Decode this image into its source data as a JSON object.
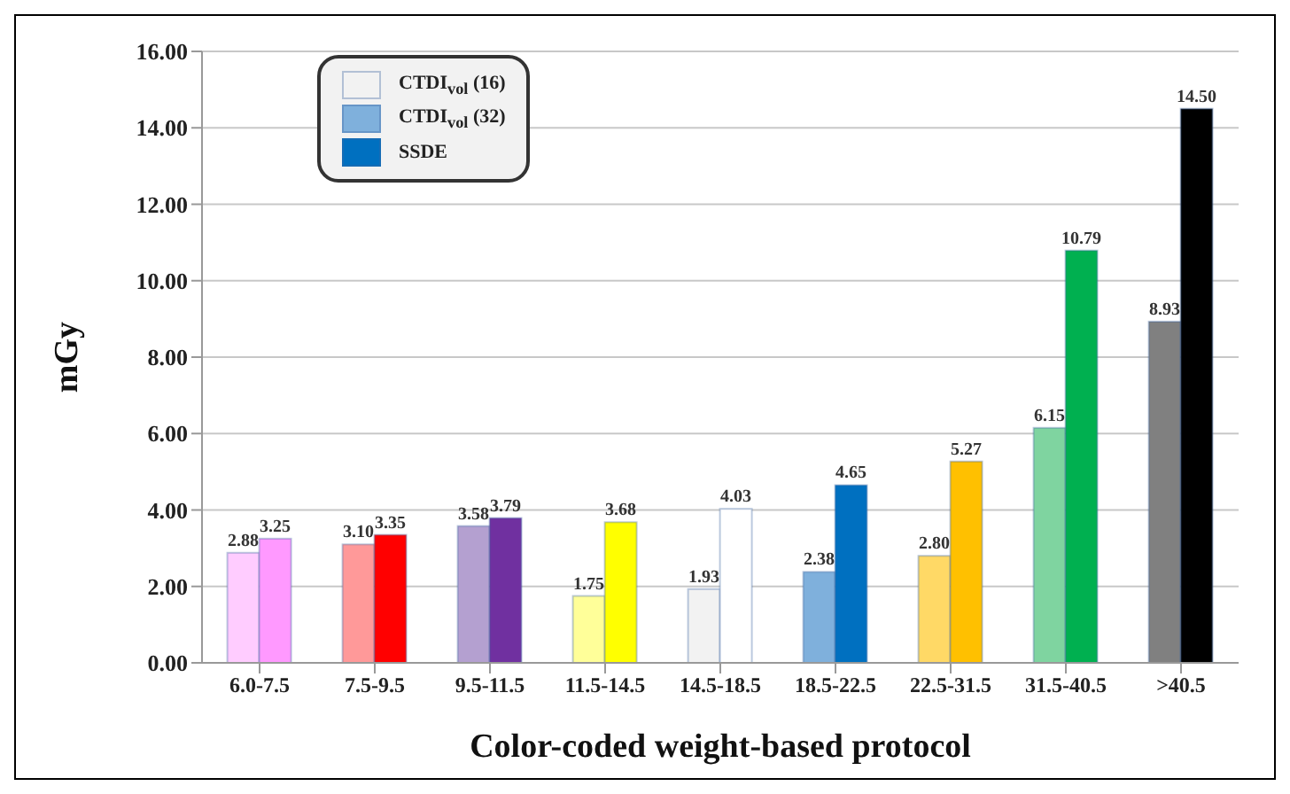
{
  "chart_data": {
    "type": "bar",
    "xlabel": "Color-coded weight-based protocol",
    "ylabel": "mGy",
    "categories": [
      "6.0-7.5",
      "7.5-9.5",
      "9.5-11.5",
      "11.5-14.5",
      "14.5-18.5",
      "18.5-22.5",
      "22.5-31.5",
      "31.5-40.5",
      ">40.5"
    ],
    "series": [
      {
        "name": "CTDI$_{vol}$ (16)",
        "color": "#f2f2f2",
        "colors": [
          "#ffccff",
          "#ff9999",
          "#b4a0d0",
          "#ffff99",
          "#f2f2f2",
          null,
          null,
          null,
          null
        ],
        "values": [
          2.88,
          3.1,
          3.58,
          1.75,
          1.93,
          null,
          null,
          null,
          null
        ],
        "value_labels": [
          "2.88",
          "3.10",
          "3.58",
          "1.75",
          "1.93",
          null,
          null,
          null,
          null
        ]
      },
      {
        "name": "CTDI$_{vol}$ (32)",
        "color": "#7fb0dc",
        "colors": [
          null,
          null,
          null,
          null,
          null,
          "#7fb0dc",
          "#ffd966",
          "#7fd4a0",
          "#808080"
        ],
        "values": [
          null,
          null,
          null,
          null,
          null,
          2.38,
          2.8,
          6.15,
          8.93
        ],
        "value_labels": [
          null,
          null,
          null,
          null,
          null,
          "2.38",
          "2.80",
          "6.15",
          "8.93"
        ]
      },
      {
        "name": "SSDE",
        "color": "#0070c0",
        "colors": [
          "#ff99ff",
          "#ff0000",
          "#7030a0",
          "#ffff00",
          "#ffffff",
          "#0070c0",
          "#ffc000",
          "#00b050",
          "#000000"
        ],
        "values": [
          3.25,
          3.35,
          3.79,
          3.68,
          4.03,
          4.65,
          5.27,
          10.79,
          14.5
        ],
        "value_labels": [
          "3.25",
          "3.35",
          "3.79",
          "3.68",
          "4.03",
          "4.65",
          "5.27",
          "10.79",
          "14.50"
        ]
      }
    ],
    "ylim": [
      0,
      16
    ],
    "yticks": [
      {
        "value": 0,
        "label": "0.00"
      },
      {
        "value": 2,
        "label": "2.00"
      },
      {
        "value": 4,
        "label": "4.00"
      },
      {
        "value": 6,
        "label": "6.00"
      },
      {
        "value": 8,
        "label": "8.00"
      },
      {
        "value": 10,
        "label": "10.00"
      },
      {
        "value": 12,
        "label": "12.00"
      },
      {
        "value": 14,
        "label": "14.00"
      },
      {
        "value": 16,
        "label": "16.00"
      }
    ],
    "grid": "y",
    "legend": "top left"
  }
}
